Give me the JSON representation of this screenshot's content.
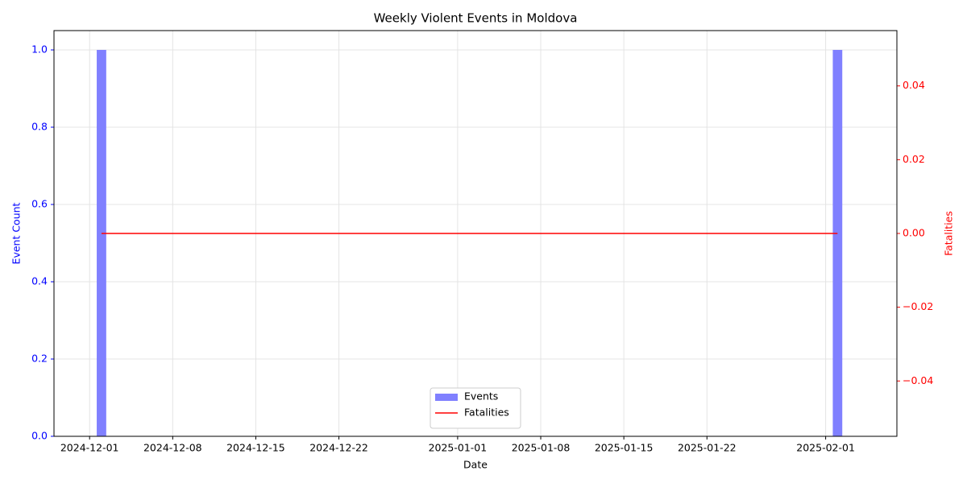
{
  "chart_data": {
    "type": "bar-line",
    "title": "Weekly Violent Events in Moldova",
    "xlabel": "Date",
    "ylabel": "Event Count",
    "y2label": "Fatalities",
    "x": [
      "2024-12-02",
      "2025-02-02"
    ],
    "xlim": [
      "2024-11-28",
      "2025-02-07"
    ],
    "xticks": [
      "2024-12-01",
      "2024-12-08",
      "2024-12-15",
      "2024-12-22",
      "2025-01-01",
      "2025-01-08",
      "2025-01-15",
      "2025-01-22",
      "2025-02-01"
    ],
    "ylim": [
      0,
      1.05
    ],
    "yticks": [
      {
        "value": 0,
        "label": "0.0"
      },
      {
        "value": 0.2,
        "label": "0.2"
      },
      {
        "value": 0.4,
        "label": "0.4"
      },
      {
        "value": 0.6,
        "label": "0.6"
      },
      {
        "value": 0.8,
        "label": "0.8"
      },
      {
        "value": 1,
        "label": "1.0"
      }
    ],
    "y2lim": [
      -0.055,
      0.055
    ],
    "y2ticks": [
      {
        "value": -0.04,
        "label": "−0.04"
      },
      {
        "value": -0.02,
        "label": "−0.02"
      },
      {
        "value": 0,
        "label": "0.00"
      },
      {
        "value": 0.02,
        "label": "0.02"
      },
      {
        "value": 0.04,
        "label": "0.04"
      }
    ],
    "grid": true,
    "legend": "lower center",
    "series": [
      {
        "name": "Events",
        "type": "bar",
        "color": "#8080ff",
        "values": [
          1,
          1
        ]
      },
      {
        "name": "Fatalities",
        "type": "line",
        "color": "#ff0000",
        "axis": "y2",
        "values": [
          0,
          0
        ]
      }
    ]
  }
}
